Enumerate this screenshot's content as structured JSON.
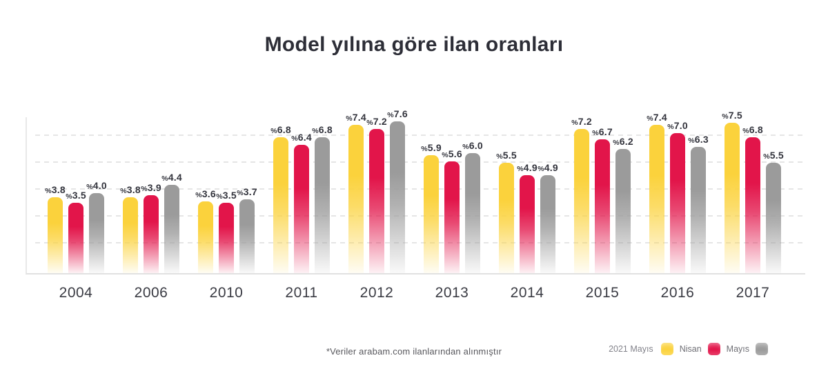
{
  "title": "Model yılına göre ilan oranları",
  "footnote": "*Veriler arabam.com ilanlarından alınmıştır",
  "legend": {
    "title": "2021 Mayıs",
    "entries": [
      {
        "label": "Nisan",
        "color": "#fbd23c"
      },
      {
        "label": "Mayıs",
        "color": "#e2154a"
      },
      {
        "label": "",
        "color": "#9b9b9b"
      }
    ]
  },
  "chart_data": {
    "type": "bar",
    "title": "Model yılına göre ilan oranları",
    "categories": [
      "2004",
      "2006",
      "2010",
      "2011",
      "2012",
      "2013",
      "2014",
      "2015",
      "2016",
      "2017"
    ],
    "series": [
      {
        "name": "Nisan",
        "color": "#fbd23c",
        "values": [
          3.8,
          3.8,
          3.6,
          6.8,
          7.4,
          5.9,
          5.5,
          7.2,
          7.4,
          7.5
        ],
        "labels": [
          "3.8",
          "3.8",
          "3.6",
          "6.8",
          "7.4",
          "5.9",
          "5.5",
          "7.2",
          "7.4",
          "7.5"
        ]
      },
      {
        "name": "Mayıs",
        "color": "#e2154a",
        "values": [
          3.5,
          3.9,
          3.5,
          6.4,
          7.2,
          5.6,
          4.9,
          6.7,
          7.0,
          6.8
        ],
        "labels": [
          "3.5",
          "3.9",
          "3.5",
          "6.4",
          "7.2",
          "5.6",
          "4.9",
          "6.7",
          "7.0",
          "6.8"
        ]
      },
      {
        "name": "",
        "color": "#9b9b9b",
        "values": [
          4.0,
          4.4,
          3.7,
          6.8,
          7.6,
          6.0,
          4.9,
          6.2,
          6.3,
          5.5
        ],
        "labels": [
          "4.0",
          "4.4",
          "3.7",
          "6.8",
          "7.6",
          "6.0",
          "4.9",
          "6.2",
          "6.3",
          "5.5"
        ]
      }
    ],
    "value_label_prefix": "%",
    "ylim": [
      0,
      8
    ],
    "grid": "horizontal-dashed",
    "legend_position": "bottom-right"
  }
}
